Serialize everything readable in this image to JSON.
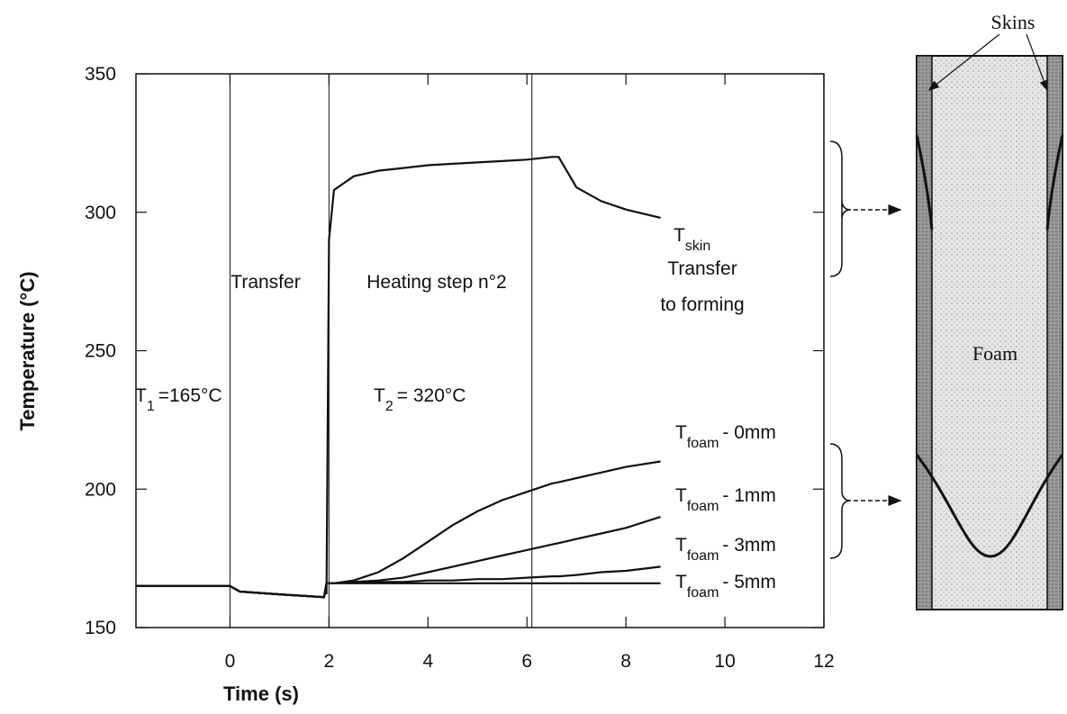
{
  "chart_data": {
    "type": "line",
    "xlabel": "Time (s)",
    "ylabel": "Temperature (°C)",
    "xlim": [
      -1.9,
      12
    ],
    "ylim": [
      150,
      350
    ],
    "xticks": [
      0,
      2,
      4,
      6,
      8,
      10,
      12
    ],
    "yticks": [
      150,
      200,
      250,
      300,
      350
    ],
    "phase_lines": [
      0,
      2,
      6.1
    ],
    "x": [
      -1.9,
      0,
      0.2,
      1.0,
      1.9,
      1.95,
      2.0,
      2.1,
      2.5,
      3,
      3.5,
      4,
      4.5,
      5,
      5.5,
      6,
      6.5,
      6.64,
      7,
      7.5,
      8,
      8.7
    ],
    "series": [
      {
        "label": {
          "main": "T",
          "sub": "skin"
        },
        "color": "#111111",
        "values": [
          null,
          null,
          null,
          null,
          null,
          162,
          290,
          308,
          313,
          315,
          316,
          317,
          317.5,
          318,
          318.5,
          319,
          320,
          320,
          309,
          304,
          301,
          298
        ]
      },
      {
        "label": {
          "main": "T",
          "sub": "foam",
          "tail": "- 0mm"
        },
        "color": "#111111",
        "values": [
          165,
          165,
          163,
          162,
          161,
          166,
          166,
          166,
          167,
          170,
          175,
          181,
          187,
          192,
          196,
          199,
          202,
          202.5,
          204,
          206,
          208,
          210
        ]
      },
      {
        "label": {
          "main": "T",
          "sub": "foam",
          "tail": "- 1mm"
        },
        "color": "#111111",
        "values": [
          165,
          165,
          163,
          162,
          161,
          166,
          166,
          166,
          166.5,
          167,
          168,
          170,
          172,
          174,
          176,
          178,
          180,
          180.5,
          182,
          184,
          186,
          190
        ]
      },
      {
        "label": {
          "main": "T",
          "sub": "foam",
          "tail": "- 3mm"
        },
        "color": "#111111",
        "values": [
          165,
          165,
          163,
          162,
          161,
          166,
          166,
          166,
          166.5,
          166.5,
          166.5,
          167,
          167,
          167.5,
          167.5,
          168,
          168.5,
          168.5,
          169,
          170,
          170.5,
          172
        ]
      },
      {
        "label": {
          "main": "T",
          "sub": "foam",
          "tail": "- 5mm"
        },
        "color": "#111111",
        "values": [
          165,
          165,
          163,
          162,
          161,
          166,
          166,
          166,
          166,
          166,
          166,
          166,
          166,
          166,
          166,
          166,
          166,
          166,
          166,
          166,
          166,
          166
        ]
      }
    ],
    "annotations": {
      "transfer": "Transfer",
      "heating": "Heating step n°2",
      "forming": [
        "Transfer",
        "to forming"
      ],
      "t1": {
        "main": "T",
        "sub": "1",
        "tail": "=165°C"
      },
      "t2": {
        "main": "T",
        "sub": "2",
        "tail": "= 320°C"
      }
    }
  },
  "diagram": {
    "skins": "Skins",
    "foam": "Foam"
  }
}
